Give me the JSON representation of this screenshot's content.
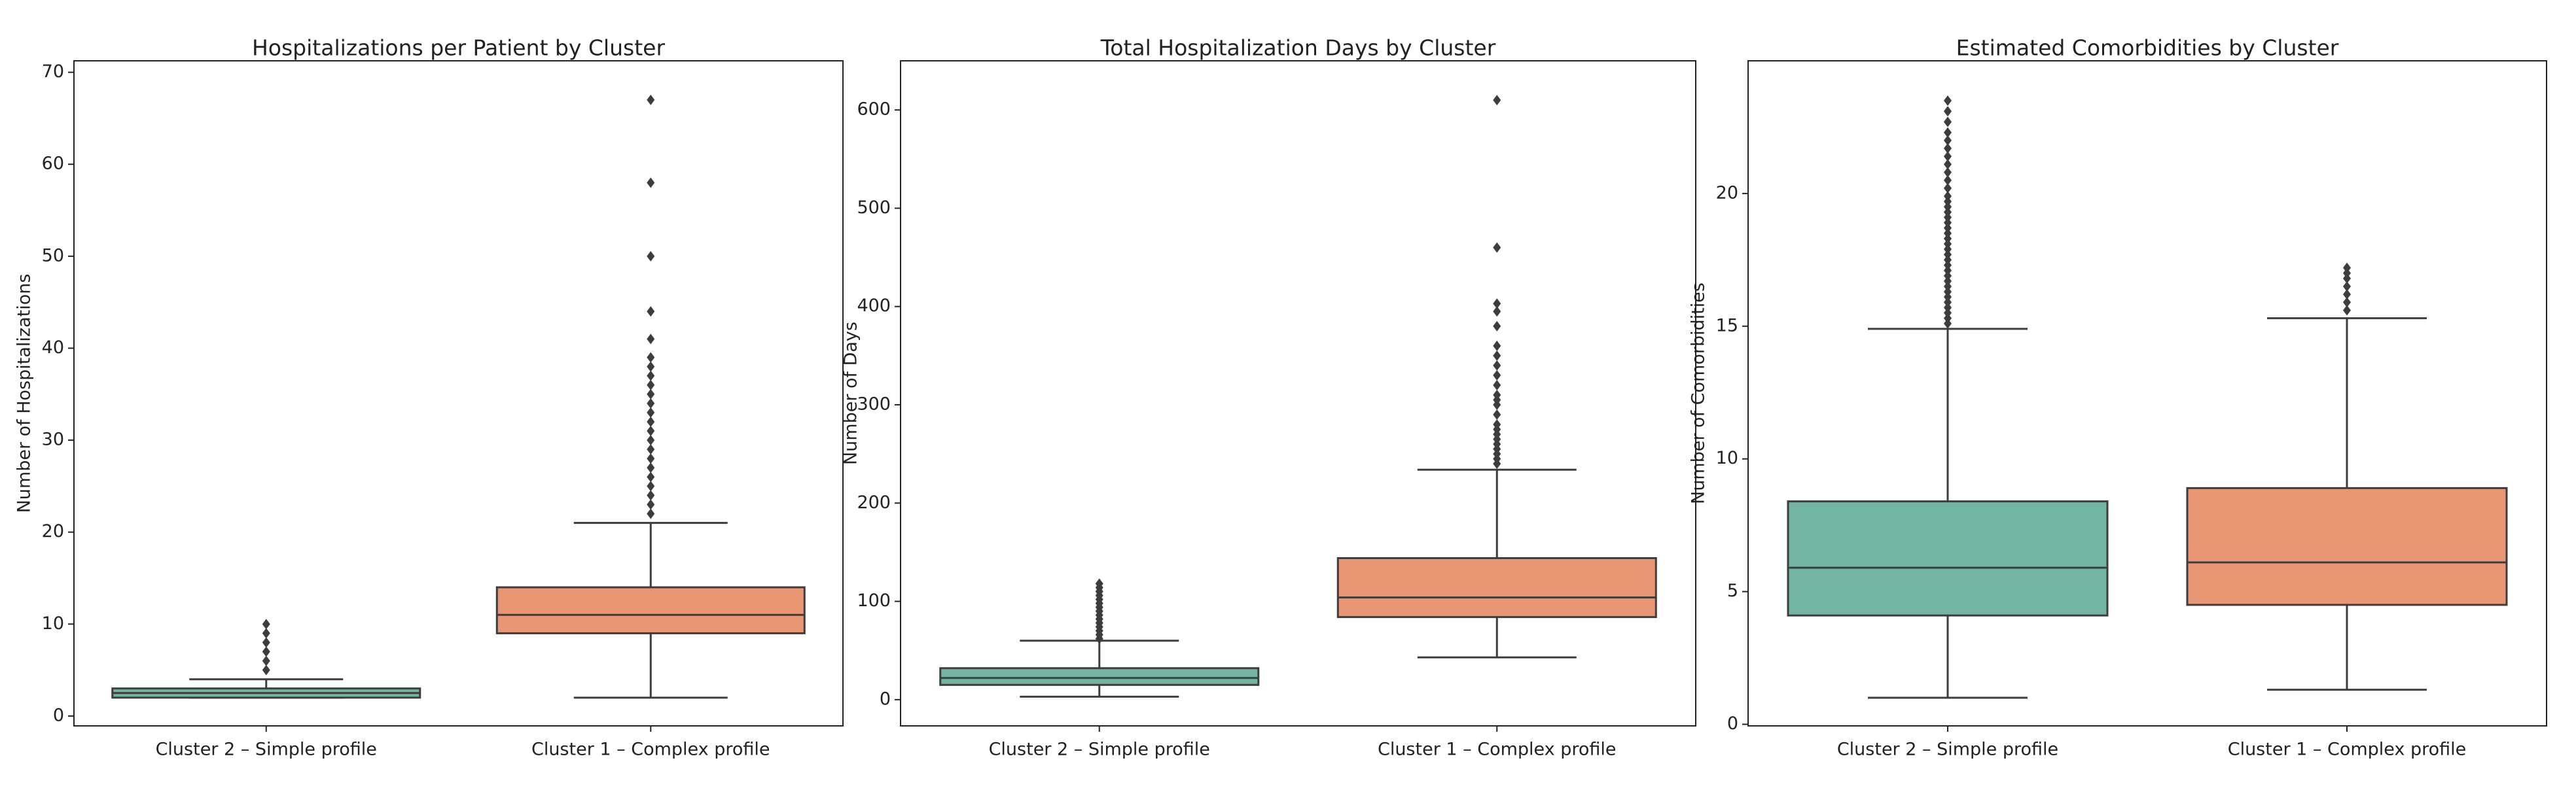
{
  "chart_data": [
    {
      "type": "box",
      "title": "Hospitalizations per Patient by Cluster",
      "y_label": "Number of Hospitalizations",
      "categories": [
        "Cluster 2 – Simple profile",
        "Cluster 1 – Complex profile"
      ],
      "ylim": [
        -1.07,
        71.25
      ],
      "yticks": [
        0,
        10,
        20,
        30,
        40,
        50,
        60,
        70
      ],
      "boxes": [
        {
          "color": "#72b6a1",
          "whislo": 2,
          "q1": 2,
          "med": 2.5,
          "q3": 3,
          "whishi": 4,
          "fliers": [
            5,
            6,
            7,
            8,
            9,
            10
          ]
        },
        {
          "color": "#e99675",
          "whislo": 2,
          "q1": 9,
          "med": 11,
          "q3": 14,
          "whishi": 21,
          "fliers": [
            22,
            23,
            24,
            25,
            26,
            27,
            28,
            29,
            30,
            31,
            32,
            33,
            34,
            35,
            36,
            37,
            38,
            39,
            41,
            44,
            50,
            58,
            67
          ]
        }
      ]
    },
    {
      "type": "box",
      "title": "Total Hospitalization Days by Cluster",
      "y_label": "Number of Days",
      "categories": [
        "Cluster 2 – Simple profile",
        "Cluster 1 – Complex profile"
      ],
      "ylim": [
        -26.7,
        650
      ],
      "yticks": [
        0,
        100,
        200,
        300,
        400,
        500,
        600
      ],
      "boxes": [
        {
          "color": "#72b6a1",
          "whislo": 3,
          "q1": 15,
          "med": 22,
          "q3": 32,
          "whishi": 60,
          "fliers": [
            62,
            66,
            70,
            74,
            78,
            82,
            86,
            90,
            94,
            98,
            102,
            106,
            110,
            114,
            118
          ]
        },
        {
          "color": "#e99675",
          "whislo": 43,
          "q1": 84,
          "med": 104,
          "q3": 144,
          "whishi": 234,
          "fliers": [
            240,
            245,
            250,
            255,
            260,
            265,
            270,
            275,
            280,
            290,
            300,
            305,
            310,
            320,
            330,
            340,
            350,
            360,
            380,
            395,
            403,
            460,
            610
          ]
        }
      ]
    },
    {
      "type": "box",
      "title": "Estimated Comorbidities by Cluster",
      "y_label": "Number of Comorbidities",
      "categories": [
        "Cluster 2 – Simple profile",
        "Cluster 1 – Complex profile"
      ],
      "ylim": [
        -0.06,
        25
      ],
      "yticks": [
        0,
        5,
        10,
        15,
        20
      ],
      "boxes": [
        {
          "color": "#72b6a1",
          "whislo": 1.0,
          "q1": 4.1,
          "med": 5.9,
          "q3": 8.4,
          "whishi": 14.9,
          "fliers": [
            15.1,
            15.3,
            15.5,
            15.7,
            15.9,
            16.1,
            16.3,
            16.5,
            16.7,
            16.9,
            17.1,
            17.3,
            17.5,
            17.7,
            17.9,
            18.1,
            18.3,
            18.5,
            18.7,
            18.9,
            19.1,
            19.3,
            19.5,
            19.7,
            19.9,
            20.2,
            20.5,
            20.8,
            21.1,
            21.4,
            21.7,
            22.0,
            22.3,
            22.7,
            23.1,
            23.5
          ]
        },
        {
          "color": "#e99675",
          "whislo": 1.3,
          "q1": 4.5,
          "med": 6.1,
          "q3": 8.9,
          "whishi": 15.3,
          "fliers": [
            15.6,
            15.9,
            16.2,
            16.5,
            16.8,
            17.0,
            17.2
          ]
        }
      ]
    }
  ]
}
